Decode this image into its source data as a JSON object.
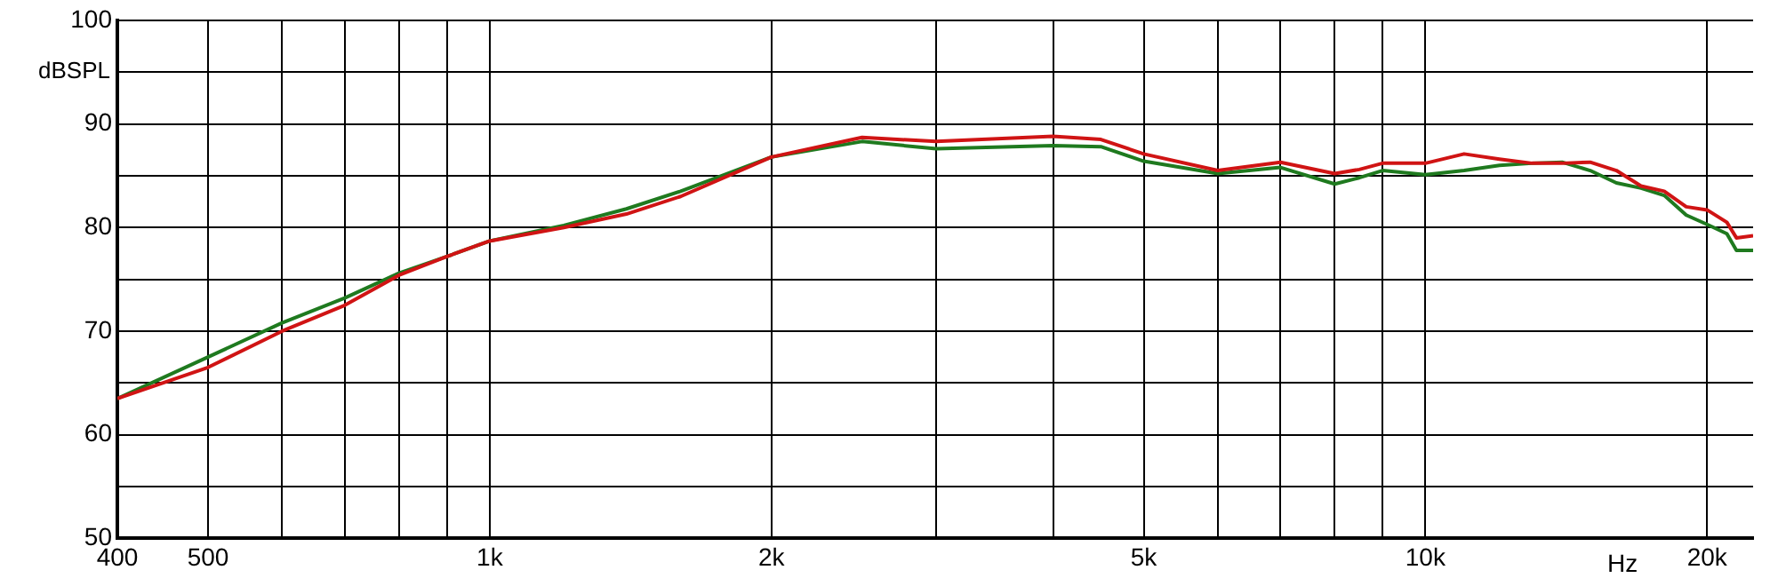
{
  "chart_data": {
    "type": "line",
    "xlabel": "Hz",
    "ylabel": "dBSPL",
    "log": "x",
    "grid": true,
    "legend": false,
    "marker": "none",
    "line_style": "solid",
    "xlim": [
      400,
      22400
    ],
    "xticks": [
      400,
      500,
      {
        "value": 600,
        "label": null
      },
      {
        "value": 700,
        "label": null
      },
      {
        "value": 800,
        "label": null
      },
      {
        "value": 900,
        "label": null
      },
      {
        "value": 1000,
        "label": "1k"
      },
      {
        "value": 2000,
        "label": "2k"
      },
      {
        "value": 3000,
        "label": null
      },
      {
        "value": 4000,
        "label": null
      },
      {
        "value": 5000,
        "label": "5k"
      },
      {
        "value": 6000,
        "label": null
      },
      {
        "value": 7000,
        "label": null
      },
      {
        "value": 8000,
        "label": null
      },
      {
        "value": 9000,
        "label": null
      },
      {
        "value": 10000,
        "label": "10k"
      },
      {
        "value": 20000,
        "label": "20k"
      }
    ],
    "ylim": [
      50,
      100
    ],
    "yticks": [
      50,
      {
        "value": 55,
        "label": null
      },
      60,
      {
        "value": 65,
        "label": null
      },
      70,
      {
        "value": 75,
        "label": null
      },
      80,
      {
        "value": 85,
        "label": null
      },
      90,
      {
        "value": 95,
        "label": null
      },
      100
    ],
    "x": [
      400,
      500,
      600,
      700,
      800,
      900,
      1000,
      1200,
      1400,
      1600,
      2000,
      2500,
      3000,
      4000,
      4500,
      5000,
      6000,
      7000,
      8000,
      8500,
      9000,
      10000,
      11000,
      12000,
      13000,
      14000,
      15000,
      16000,
      17000,
      18000,
      19000,
      20000,
      21000,
      21500,
      22400
    ],
    "series": [
      {
        "color": "#d01414",
        "values": [
          63.5,
          66.5,
          70.0,
          72.5,
          75.4,
          77.2,
          78.7,
          80.0,
          81.3,
          83.0,
          86.8,
          88.7,
          88.3,
          88.8,
          88.5,
          87.1,
          85.5,
          86.3,
          85.2,
          85.6,
          86.2,
          86.2,
          87.1,
          86.6,
          86.2,
          86.2,
          86.3,
          85.5,
          84.0,
          83.5,
          82.0,
          81.7,
          80.5,
          79.0,
          79.2
        ]
      },
      {
        "color": "#1f7a1f",
        "values": [
          63.5,
          67.5,
          70.8,
          73.2,
          75.6,
          77.2,
          78.7,
          80.2,
          81.8,
          83.5,
          86.8,
          88.3,
          87.6,
          87.9,
          87.8,
          86.4,
          85.2,
          85.8,
          84.2,
          84.8,
          85.5,
          85.1,
          85.5,
          86.0,
          86.2,
          86.3,
          85.5,
          84.3,
          83.8,
          83.1,
          81.2,
          80.3,
          79.4,
          77.8,
          77.8
        ]
      }
    ]
  }
}
